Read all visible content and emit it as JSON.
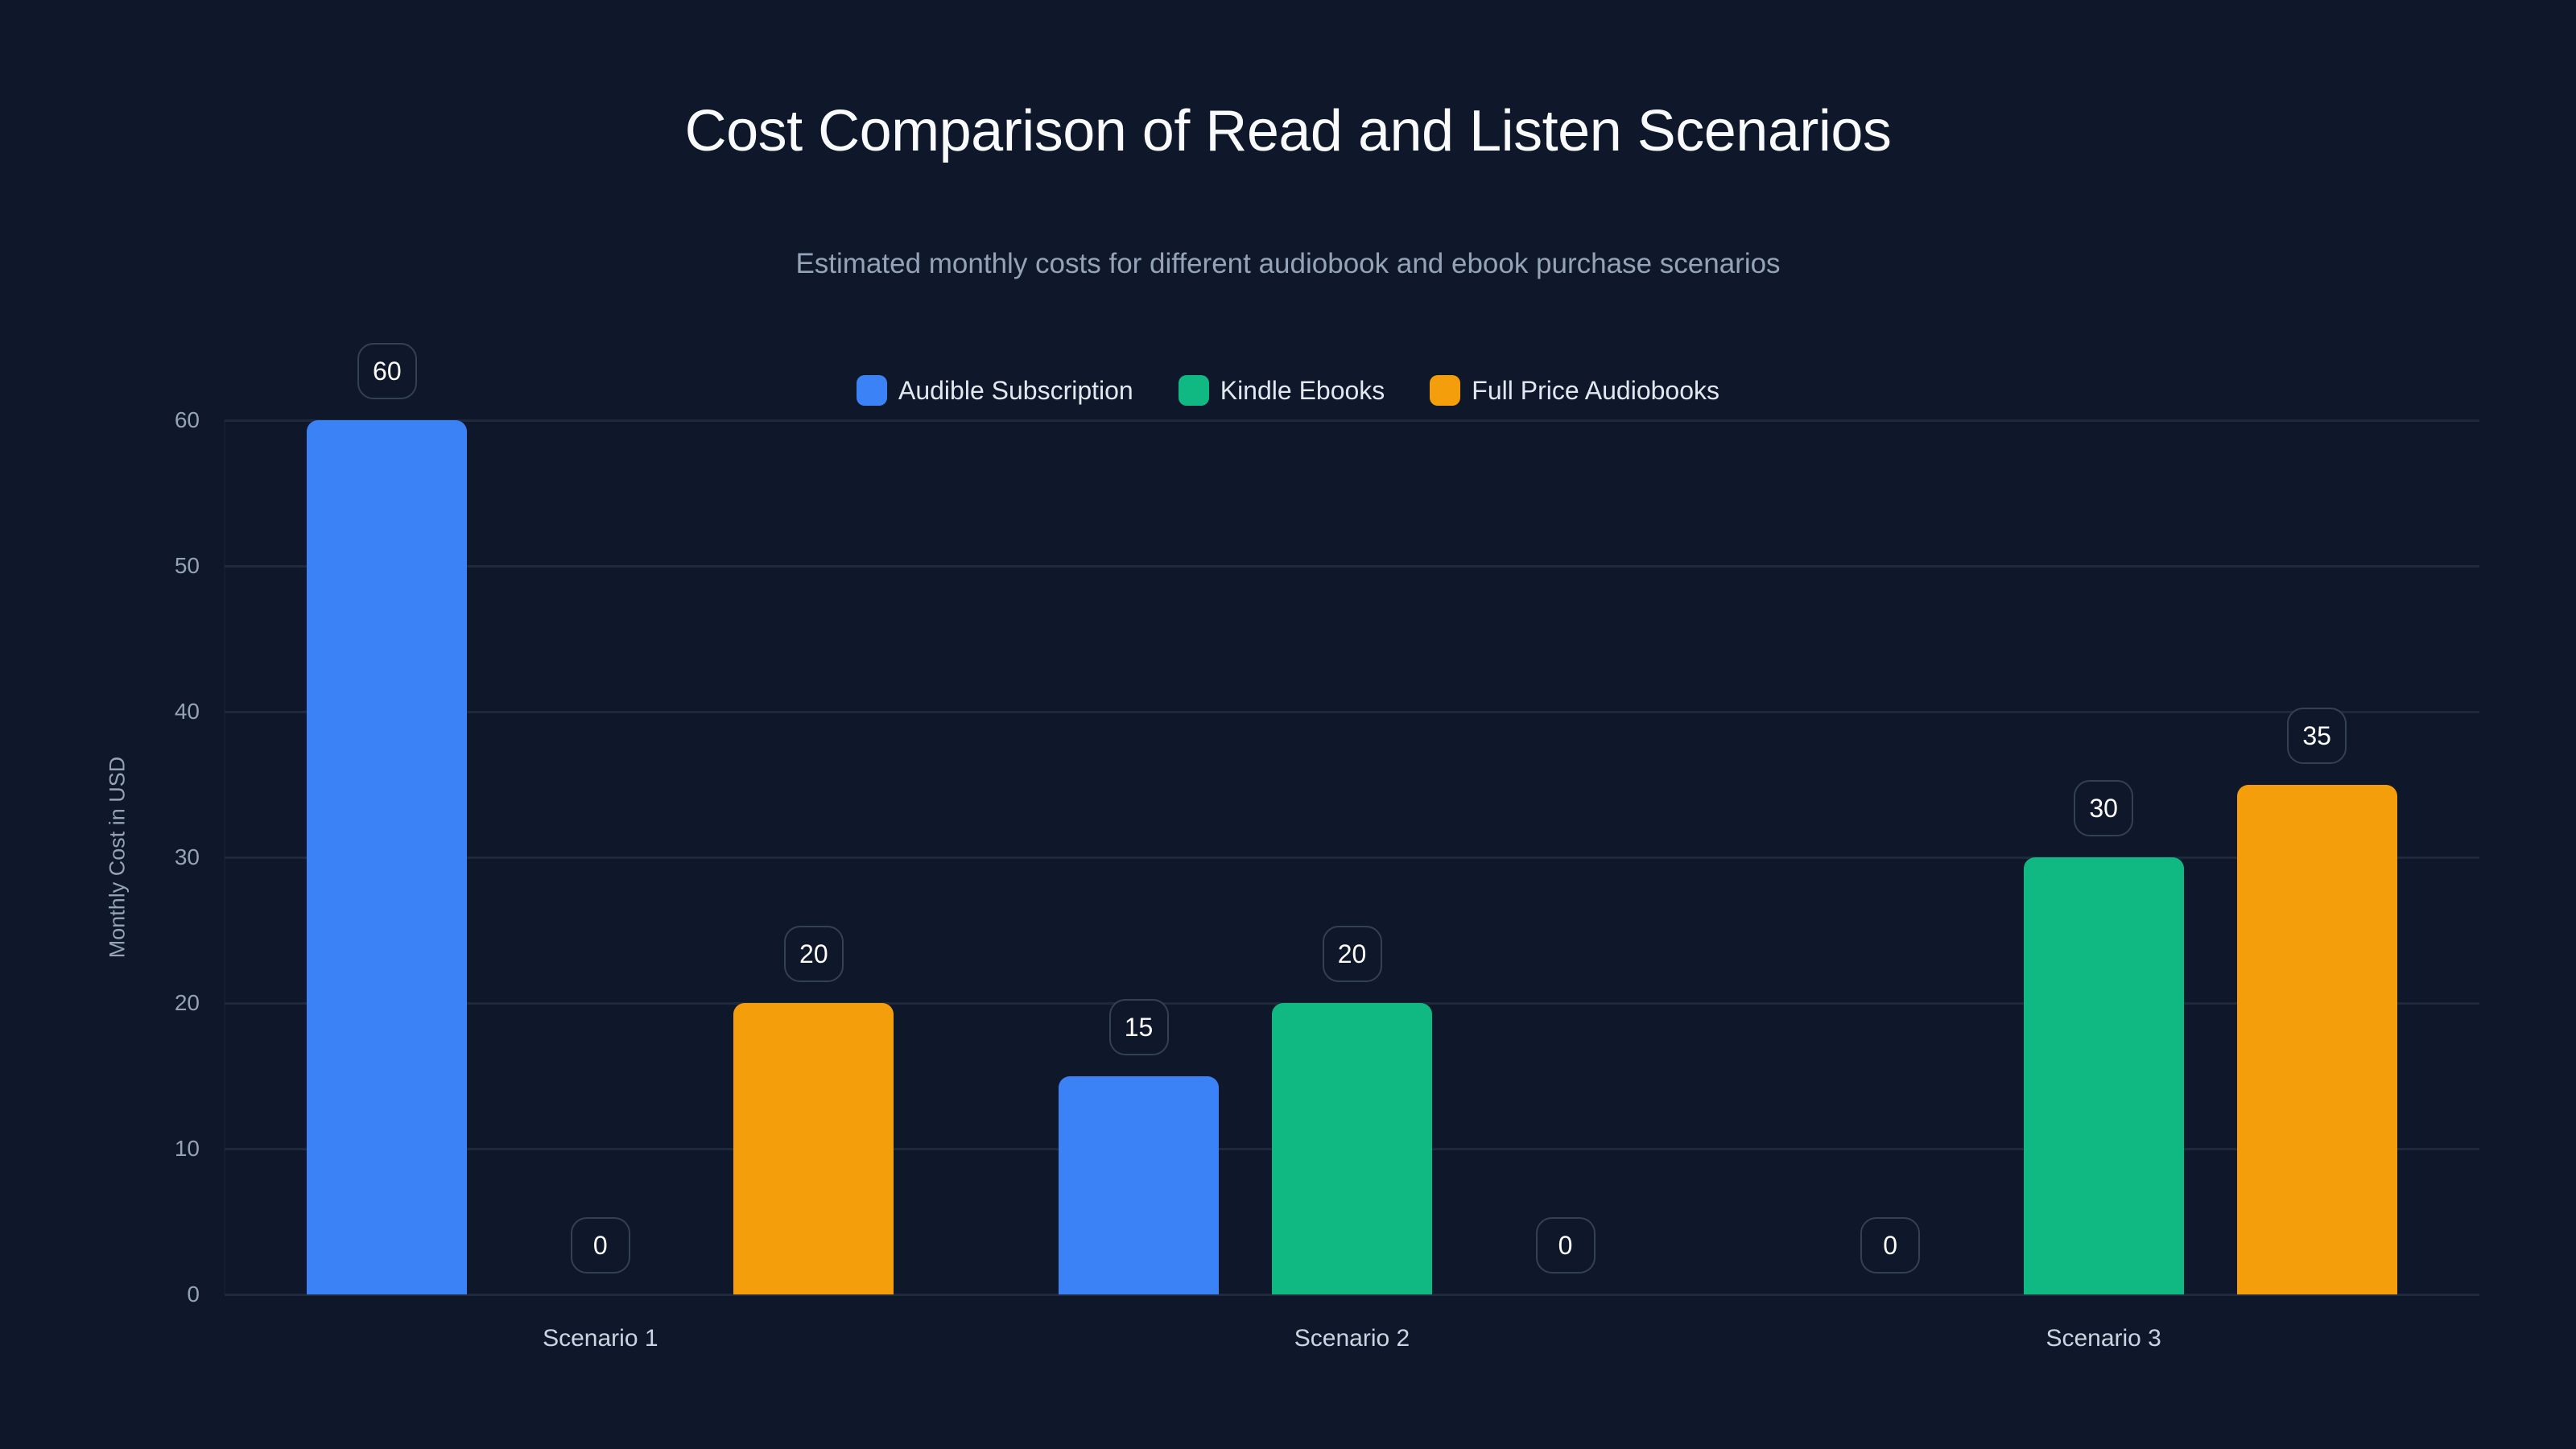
{
  "header": {
    "title": "Cost Comparison of Read and Listen Scenarios",
    "subtitle": "Estimated monthly costs for different audiobook and ebook purchase scenarios"
  },
  "legend": [
    {
      "label": "Audible Subscription",
      "color": "#3b82f6"
    },
    {
      "label": "Kindle Ebooks",
      "color": "#10b981"
    },
    {
      "label": "Full Price Audiobooks",
      "color": "#f59e0b"
    }
  ],
  "axis": {
    "y_title": "Monthly Cost in USD",
    "y_ticks": [
      "0",
      "10",
      "20",
      "30",
      "40",
      "50",
      "60"
    ],
    "x_labels": [
      "Scenario 1",
      "Scenario 2",
      "Scenario 3"
    ]
  },
  "chart_data": {
    "type": "bar",
    "title": "Cost Comparison of Read and Listen Scenarios",
    "subtitle": "Estimated monthly costs for different audiobook and ebook purchase scenarios",
    "categories": [
      "Scenario 1",
      "Scenario 2",
      "Scenario 3"
    ],
    "series": [
      {
        "name": "Audible Subscription",
        "color": "#3b82f6",
        "values": [
          60,
          15,
          0
        ]
      },
      {
        "name": "Kindle Ebooks",
        "color": "#10b981",
        "values": [
          0,
          20,
          30
        ]
      },
      {
        "name": "Full Price Audiobooks",
        "color": "#f59e0b",
        "values": [
          20,
          0,
          35
        ]
      }
    ],
    "xlabel": "",
    "ylabel": "Monthly Cost in USD",
    "ylim": [
      0,
      60
    ],
    "yticks": [
      0,
      10,
      20,
      30,
      40,
      50,
      60
    ],
    "grid": true,
    "legend_position": "top-center",
    "data_labels": true
  }
}
